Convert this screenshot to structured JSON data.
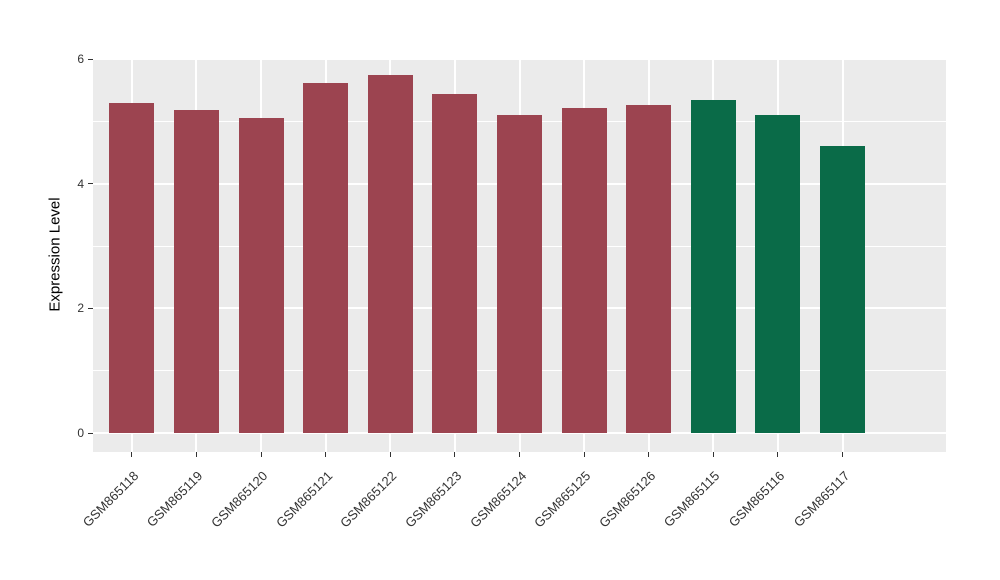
{
  "chart_data": {
    "type": "bar",
    "title": "",
    "xlabel": "",
    "ylabel": "Expression Level",
    "categories": [
      "GSM865118",
      "GSM865119",
      "GSM865120",
      "GSM865121",
      "GSM865122",
      "GSM865123",
      "GSM865124",
      "GSM865125",
      "GSM865126",
      "GSM865115",
      "GSM865116",
      "GSM865117"
    ],
    "values": [
      5.3,
      5.18,
      5.05,
      5.62,
      5.74,
      5.45,
      5.11,
      5.21,
      5.26,
      5.35,
      5.1,
      4.6
    ],
    "bar_colors": [
      "#9C4450",
      "#9C4450",
      "#9C4450",
      "#9C4450",
      "#9C4450",
      "#9C4450",
      "#9C4450",
      "#9C4450",
      "#9C4450",
      "#0A6B48",
      "#0A6B48",
      "#0A6B48"
    ],
    "group_colors": {
      "red_group": "#9C4450",
      "green_group": "#0A6B48"
    },
    "ylim": [
      0,
      6
    ],
    "yticks_major": [
      0,
      2,
      4,
      6
    ],
    "yticks_minor": [
      1,
      3,
      5
    ],
    "panel_range": [
      -0.305,
      6.02
    ],
    "grid": true,
    "legend": "none",
    "panel_bg": "#EBEBEB",
    "grid_color": "#FFFFFF",
    "axis_text_color": "#333333"
  }
}
